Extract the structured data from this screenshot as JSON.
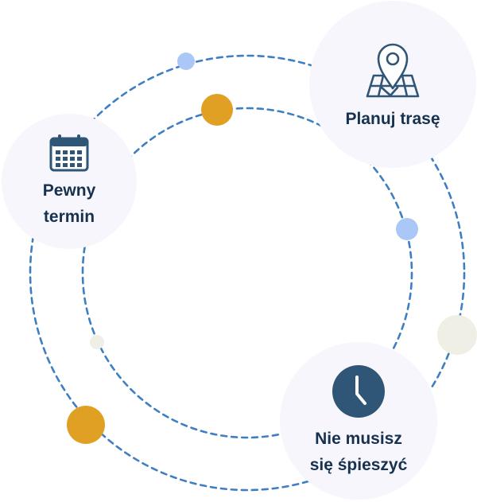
{
  "colors": {
    "ring": "#3f7fc1",
    "bubble": "#f6f6fc",
    "text": "#17324f",
    "icon": "#2f5577",
    "dot_blue": "#a9c8f7",
    "dot_gold": "#e0a023",
    "dot_cream": "#efefe6"
  },
  "items": [
    {
      "id": "route",
      "label": "Planuj trasę",
      "icon": "map-pin-icon"
    },
    {
      "id": "date",
      "label": "Pewny\ntermin",
      "icon": "calendar-icon"
    },
    {
      "id": "time",
      "label": "Nie musisz\nsię śpieszyć",
      "icon": "clock-icon"
    }
  ]
}
